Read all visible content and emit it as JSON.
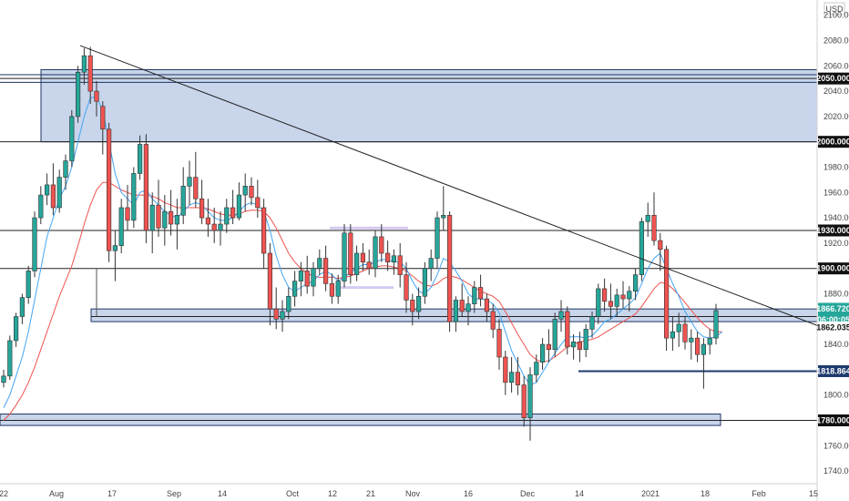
{
  "chart_data": {
    "type": "candlestick",
    "currency": "USD",
    "ylim": [
      1730,
      2112
    ],
    "y_ticks": [
      2100,
      2080,
      2060,
      2040,
      2020,
      2000,
      1980,
      1960,
      1940,
      1920,
      1900,
      1880,
      1860,
      1840,
      1820,
      1800,
      1780,
      1760,
      1740
    ],
    "x_ticks": [
      "22",
      "Aug",
      "17",
      "Sep",
      "14",
      "Oct",
      "12",
      "21",
      "Nov",
      "16",
      "Dec",
      "14",
      "2021",
      "18",
      "Feb",
      "15"
    ],
    "candles": [
      {
        "o": 1810,
        "h": 1820,
        "l": 1806,
        "c": 1815
      },
      {
        "o": 1815,
        "h": 1847,
        "l": 1812,
        "c": 1843
      },
      {
        "o": 1843,
        "h": 1865,
        "l": 1838,
        "c": 1862
      },
      {
        "o": 1862,
        "h": 1880,
        "l": 1856,
        "c": 1877
      },
      {
        "o": 1877,
        "h": 1902,
        "l": 1872,
        "c": 1898
      },
      {
        "o": 1898,
        "h": 1945,
        "l": 1893,
        "c": 1940
      },
      {
        "o": 1940,
        "h": 1965,
        "l": 1935,
        "c": 1958
      },
      {
        "o": 1958,
        "h": 1975,
        "l": 1950,
        "c": 1966
      },
      {
        "o": 1966,
        "h": 1983,
        "l": 1942,
        "c": 1948
      },
      {
        "o": 1948,
        "h": 1978,
        "l": 1944,
        "c": 1972
      },
      {
        "o": 1972,
        "h": 1990,
        "l": 1962,
        "c": 1985
      },
      {
        "o": 1985,
        "h": 2025,
        "l": 1980,
        "c": 2020
      },
      {
        "o": 2020,
        "h": 2060,
        "l": 2015,
        "c": 2055
      },
      {
        "o": 2055,
        "h": 2074,
        "l": 2045,
        "c": 2068
      },
      {
        "o": 2068,
        "h": 2075,
        "l": 2030,
        "c": 2040
      },
      {
        "o": 2040,
        "h": 2048,
        "l": 2020,
        "c": 2032
      },
      {
        "o": 2028,
        "h": 2032,
        "l": 1990,
        "c": 2010
      },
      {
        "o": 2010,
        "h": 2015,
        "l": 1905,
        "c": 1914
      },
      {
        "o": 1914,
        "h": 1930,
        "l": 1890,
        "c": 1918
      },
      {
        "o": 1918,
        "h": 1955,
        "l": 1912,
        "c": 1948
      },
      {
        "o": 1948,
        "h": 1966,
        "l": 1930,
        "c": 1938
      },
      {
        "o": 1938,
        "h": 1980,
        "l": 1932,
        "c": 1975
      },
      {
        "o": 1975,
        "h": 2005,
        "l": 1970,
        "c": 1998
      },
      {
        "o": 1998,
        "h": 2006,
        "l": 1920,
        "c": 1930
      },
      {
        "o": 1930,
        "h": 1960,
        "l": 1912,
        "c": 1950
      },
      {
        "o": 1950,
        "h": 1970,
        "l": 1925,
        "c": 1932
      },
      {
        "o": 1932,
        "h": 1958,
        "l": 1918,
        "c": 1945
      },
      {
        "o": 1945,
        "h": 1962,
        "l": 1926,
        "c": 1935
      },
      {
        "o": 1935,
        "h": 1955,
        "l": 1915,
        "c": 1942
      },
      {
        "o": 1942,
        "h": 1980,
        "l": 1935,
        "c": 1965
      },
      {
        "o": 1965,
        "h": 1985,
        "l": 1950,
        "c": 1972
      },
      {
        "o": 1972,
        "h": 1992,
        "l": 1948,
        "c": 1955
      },
      {
        "o": 1955,
        "h": 1970,
        "l": 1935,
        "c": 1940
      },
      {
        "o": 1940,
        "h": 1955,
        "l": 1925,
        "c": 1935
      },
      {
        "o": 1935,
        "h": 1948,
        "l": 1920,
        "c": 1930
      },
      {
        "o": 1930,
        "h": 1945,
        "l": 1918,
        "c": 1935
      },
      {
        "o": 1935,
        "h": 1955,
        "l": 1928,
        "c": 1948
      },
      {
        "o": 1948,
        "h": 1962,
        "l": 1935,
        "c": 1940
      },
      {
        "o": 1940,
        "h": 1968,
        "l": 1938,
        "c": 1958
      },
      {
        "o": 1958,
        "h": 1975,
        "l": 1945,
        "c": 1965
      },
      {
        "o": 1965,
        "h": 1972,
        "l": 1950,
        "c": 1956
      },
      {
        "o": 1956,
        "h": 1970,
        "l": 1940,
        "c": 1948
      },
      {
        "o": 1948,
        "h": 1955,
        "l": 1900,
        "c": 1912
      },
      {
        "o": 1912,
        "h": 1920,
        "l": 1855,
        "c": 1868
      },
      {
        "o": 1868,
        "h": 1885,
        "l": 1852,
        "c": 1860
      },
      {
        "o": 1860,
        "h": 1875,
        "l": 1850,
        "c": 1866
      },
      {
        "o": 1866,
        "h": 1885,
        "l": 1860,
        "c": 1878
      },
      {
        "o": 1878,
        "h": 1898,
        "l": 1870,
        "c": 1890
      },
      {
        "o": 1890,
        "h": 1905,
        "l": 1878,
        "c": 1898
      },
      {
        "o": 1898,
        "h": 1910,
        "l": 1880,
        "c": 1886
      },
      {
        "o": 1886,
        "h": 1905,
        "l": 1878,
        "c": 1900
      },
      {
        "o": 1900,
        "h": 1915,
        "l": 1895,
        "c": 1908
      },
      {
        "o": 1908,
        "h": 1918,
        "l": 1882,
        "c": 1888
      },
      {
        "o": 1888,
        "h": 1896,
        "l": 1872,
        "c": 1878
      },
      {
        "o": 1878,
        "h": 1895,
        "l": 1872,
        "c": 1890
      },
      {
        "o": 1890,
        "h": 1935,
        "l": 1885,
        "c": 1928
      },
      {
        "o": 1928,
        "h": 1935,
        "l": 1888,
        "c": 1895
      },
      {
        "o": 1895,
        "h": 1918,
        "l": 1890,
        "c": 1912
      },
      {
        "o": 1912,
        "h": 1920,
        "l": 1898,
        "c": 1905
      },
      {
        "o": 1905,
        "h": 1915,
        "l": 1895,
        "c": 1900
      },
      {
        "o": 1900,
        "h": 1930,
        "l": 1893,
        "c": 1925
      },
      {
        "o": 1925,
        "h": 1935,
        "l": 1905,
        "c": 1912
      },
      {
        "o": 1912,
        "h": 1922,
        "l": 1898,
        "c": 1905
      },
      {
        "o": 1905,
        "h": 1915,
        "l": 1895,
        "c": 1910
      },
      {
        "o": 1910,
        "h": 1920,
        "l": 1885,
        "c": 1895
      },
      {
        "o": 1895,
        "h": 1905,
        "l": 1865,
        "c": 1875
      },
      {
        "o": 1875,
        "h": 1880,
        "l": 1855,
        "c": 1866
      },
      {
        "o": 1866,
        "h": 1885,
        "l": 1860,
        "c": 1878
      },
      {
        "o": 1878,
        "h": 1905,
        "l": 1872,
        "c": 1900
      },
      {
        "o": 1900,
        "h": 1915,
        "l": 1890,
        "c": 1908
      },
      {
        "o": 1908,
        "h": 1945,
        "l": 1900,
        "c": 1940
      },
      {
        "o": 1940,
        "h": 1965,
        "l": 1930,
        "c": 1942
      },
      {
        "o": 1942,
        "h": 1945,
        "l": 1850,
        "c": 1858
      },
      {
        "o": 1858,
        "h": 1878,
        "l": 1850,
        "c": 1875
      },
      {
        "o": 1875,
        "h": 1888,
        "l": 1862,
        "c": 1866
      },
      {
        "o": 1866,
        "h": 1878,
        "l": 1855,
        "c": 1872
      },
      {
        "o": 1872,
        "h": 1890,
        "l": 1865,
        "c": 1885
      },
      {
        "o": 1885,
        "h": 1895,
        "l": 1870,
        "c": 1876
      },
      {
        "o": 1876,
        "h": 1880,
        "l": 1858,
        "c": 1866
      },
      {
        "o": 1866,
        "h": 1872,
        "l": 1845,
        "c": 1852
      },
      {
        "o": 1852,
        "h": 1860,
        "l": 1820,
        "c": 1830
      },
      {
        "o": 1830,
        "h": 1835,
        "l": 1800,
        "c": 1810
      },
      {
        "o": 1810,
        "h": 1830,
        "l": 1802,
        "c": 1818
      },
      {
        "o": 1818,
        "h": 1830,
        "l": 1800,
        "c": 1808
      },
      {
        "o": 1808,
        "h": 1815,
        "l": 1775,
        "c": 1782
      },
      {
        "o": 1782,
        "h": 1822,
        "l": 1764,
        "c": 1816
      },
      {
        "o": 1816,
        "h": 1832,
        "l": 1810,
        "c": 1826
      },
      {
        "o": 1826,
        "h": 1845,
        "l": 1820,
        "c": 1840
      },
      {
        "o": 1840,
        "h": 1852,
        "l": 1826,
        "c": 1836
      },
      {
        "o": 1836,
        "h": 1865,
        "l": 1830,
        "c": 1860
      },
      {
        "o": 1860,
        "h": 1875,
        "l": 1850,
        "c": 1866
      },
      {
        "o": 1866,
        "h": 1870,
        "l": 1832,
        "c": 1838
      },
      {
        "o": 1838,
        "h": 1848,
        "l": 1828,
        "c": 1842
      },
      {
        "o": 1842,
        "h": 1850,
        "l": 1826,
        "c": 1836
      },
      {
        "o": 1836,
        "h": 1856,
        "l": 1830,
        "c": 1852
      },
      {
        "o": 1852,
        "h": 1866,
        "l": 1845,
        "c": 1862
      },
      {
        "o": 1862,
        "h": 1888,
        "l": 1856,
        "c": 1884
      },
      {
        "o": 1884,
        "h": 1892,
        "l": 1866,
        "c": 1874
      },
      {
        "o": 1874,
        "h": 1888,
        "l": 1860,
        "c": 1870
      },
      {
        "o": 1870,
        "h": 1884,
        "l": 1862,
        "c": 1879
      },
      {
        "o": 1879,
        "h": 1890,
        "l": 1868,
        "c": 1876
      },
      {
        "o": 1876,
        "h": 1886,
        "l": 1866,
        "c": 1882
      },
      {
        "o": 1882,
        "h": 1900,
        "l": 1875,
        "c": 1895
      },
      {
        "o": 1895,
        "h": 1940,
        "l": 1890,
        "c": 1937
      },
      {
        "o": 1937,
        "h": 1952,
        "l": 1925,
        "c": 1942
      },
      {
        "o": 1942,
        "h": 1960,
        "l": 1918,
        "c": 1922
      },
      {
        "o": 1922,
        "h": 1928,
        "l": 1898,
        "c": 1915
      },
      {
        "o": 1915,
        "h": 1918,
        "l": 1835,
        "c": 1845
      },
      {
        "o": 1845,
        "h": 1862,
        "l": 1835,
        "c": 1850
      },
      {
        "o": 1850,
        "h": 1865,
        "l": 1838,
        "c": 1856
      },
      {
        "o": 1856,
        "h": 1862,
        "l": 1836,
        "c": 1842
      },
      {
        "o": 1842,
        "h": 1852,
        "l": 1828,
        "c": 1845
      },
      {
        "o": 1845,
        "h": 1850,
        "l": 1826,
        "c": 1832
      },
      {
        "o": 1832,
        "h": 1845,
        "l": 1805,
        "c": 1840
      },
      {
        "o": 1840,
        "h": 1852,
        "l": 1832,
        "c": 1845
      },
      {
        "o": 1845,
        "h": 1872,
        "l": 1840,
        "c": 1866.72
      }
    ],
    "sma_fast": [
      1790,
      1800,
      1815,
      1830,
      1850,
      1875,
      1900,
      1925,
      1940,
      1955,
      1965,
      1980,
      2000,
      2020,
      2035,
      2035,
      2025,
      2000,
      1975,
      1960,
      1955,
      1950,
      1960,
      1962,
      1955,
      1950,
      1945,
      1942,
      1940,
      1945,
      1950,
      1952,
      1950,
      1945,
      1940,
      1938,
      1938,
      1940,
      1945,
      1950,
      1952,
      1950,
      1945,
      1930,
      1910,
      1895,
      1885,
      1882,
      1885,
      1888,
      1890,
      1895,
      1898,
      1895,
      1890,
      1893,
      1897,
      1900,
      1903,
      1903,
      1905,
      1907,
      1907,
      1905,
      1905,
      1900,
      1890,
      1882,
      1880,
      1885,
      1895,
      1908,
      1905,
      1898,
      1890,
      1880,
      1876,
      1876,
      1875,
      1872,
      1865,
      1850,
      1835,
      1825,
      1815,
      1808,
      1810,
      1818,
      1826,
      1833,
      1840,
      1846,
      1846,
      1846,
      1845,
      1847,
      1852,
      1858,
      1860,
      1864,
      1868,
      1872,
      1877,
      1888,
      1900,
      1908,
      1912,
      1900,
      1888,
      1878,
      1866,
      1858,
      1850,
      1846,
      1845,
      1846,
      1850
    ],
    "sma_slow": [
      1780,
      1785,
      1792,
      1800,
      1810,
      1822,
      1836,
      1850,
      1864,
      1878,
      1890,
      1902,
      1918,
      1935,
      1950,
      1962,
      1968,
      1968,
      1965,
      1962,
      1960,
      1958,
      1958,
      1958,
      1957,
      1955,
      1952,
      1950,
      1948,
      1948,
      1948,
      1948,
      1948,
      1947,
      1945,
      1943,
      1942,
      1942,
      1943,
      1945,
      1946,
      1946,
      1945,
      1940,
      1932,
      1922,
      1912,
      1905,
      1900,
      1896,
      1894,
      1893,
      1893,
      1893,
      1892,
      1893,
      1894,
      1896,
      1898,
      1900,
      1901,
      1902,
      1902,
      1901,
      1900,
      1898,
      1894,
      1890,
      1887,
      1886,
      1888,
      1892,
      1894,
      1893,
      1891,
      1888,
      1885,
      1882,
      1880,
      1878,
      1874,
      1866,
      1857,
      1848,
      1840,
      1832,
      1828,
      1826,
      1827,
      1830,
      1834,
      1838,
      1840,
      1842,
      1843,
      1844,
      1846,
      1849,
      1852,
      1855,
      1858,
      1861,
      1864,
      1870,
      1877,
      1884,
      1889,
      1888,
      1884,
      1879,
      1873,
      1867,
      1861,
      1856,
      1852,
      1850,
      1850
    ],
    "zones": [
      {
        "from": 2000,
        "to": 2057
      },
      {
        "from": 1858,
        "to": 1868
      },
      {
        "from": 1776,
        "to": 1785
      }
    ],
    "horizontal_lines": [
      2050,
      2000,
      1930,
      1900,
      1862.035,
      1818.864,
      1780
    ],
    "trendline": {
      "from": 2076,
      "to": 1855
    },
    "price_labels": {
      "top_2050": "2050.000",
      "top_2000": "2000.000",
      "l_1930": "1930.000",
      "l_1900": "1900.000",
      "current": "1866.720",
      "countdown": "06:00:05",
      "l_1862": "1862.035",
      "l_1818": "1818.864",
      "l_1780": "1780.000"
    },
    "colors": {
      "up": "#26a69a",
      "down": "#ef5350",
      "zone_fill": "#c5d3ea",
      "zone_stroke": "#1e3561",
      "sma_fast": "#42a5f5",
      "sma_slow": "#ef5350",
      "support_line": "#1e3a6e"
    }
  }
}
